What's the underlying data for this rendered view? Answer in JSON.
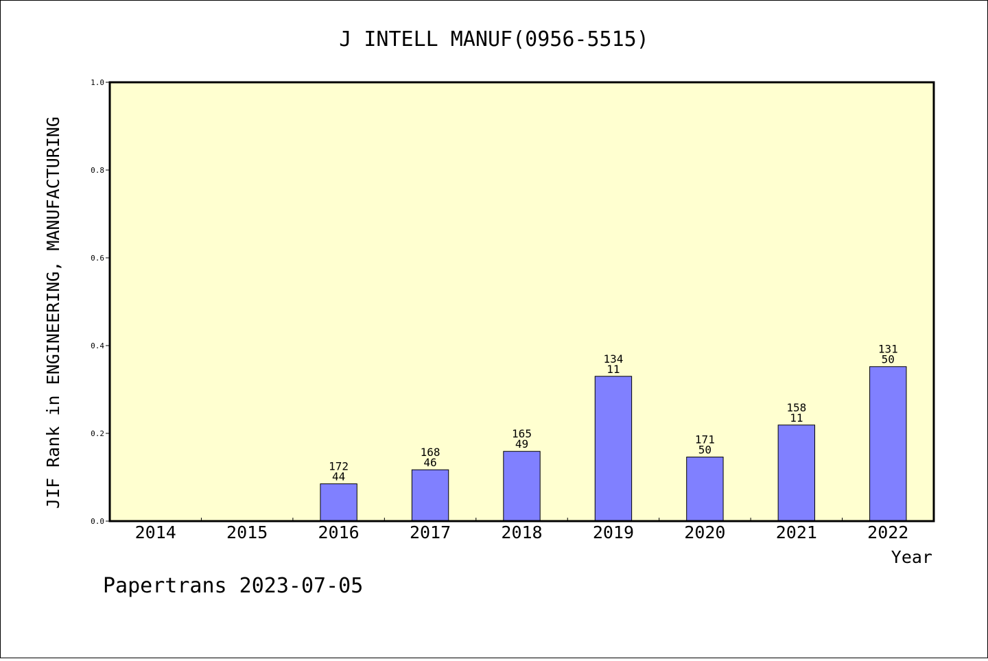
{
  "chart_data": {
    "type": "bar",
    "title": "J INTELL MANUF(0956-5515)",
    "xlabel": "Year",
    "ylabel": "JIF Rank in ENGINEERING, MANUFACTURING",
    "ylim": [
      0,
      1.0
    ],
    "yticks": [
      "0.0",
      "0.2",
      "0.4",
      "0.6",
      "0.8",
      "1.0"
    ],
    "categories": [
      "2014",
      "2015",
      "2016",
      "2017",
      "2018",
      "2019",
      "2020",
      "2021",
      "2022"
    ],
    "values": [
      null,
      null,
      0.085,
      0.117,
      0.159,
      0.33,
      0.146,
      0.219,
      0.352
    ],
    "label_top": [
      "",
      "",
      "172",
      "168",
      "165",
      "134",
      "171",
      "158",
      "131"
    ],
    "label_bottom": [
      "",
      "",
      "44",
      "46",
      "49",
      "11",
      "50",
      "11",
      "50"
    ],
    "grid": false,
    "colors": {
      "plot_background": "#ffffd0",
      "bar_fill": "#8080ff",
      "bar_stroke": "#000000"
    }
  },
  "footer": {
    "text": "Papertrans 2023-07-05"
  }
}
